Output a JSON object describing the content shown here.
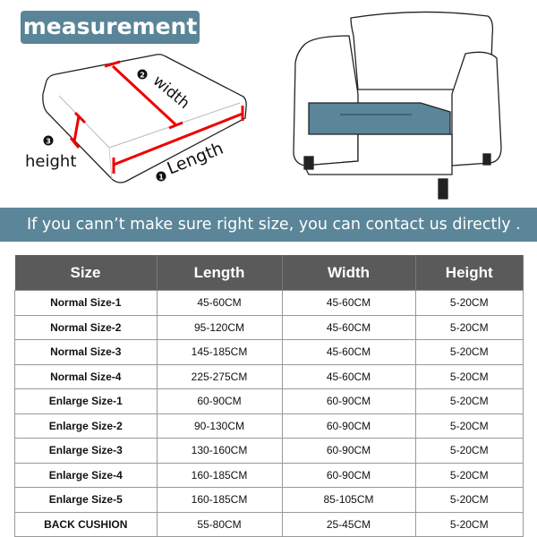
{
  "header": {
    "tag": "measurement"
  },
  "diagram": {
    "length_label": "Length",
    "width_label": "width",
    "height_label": "height",
    "length_num": "1",
    "width_num": "2",
    "height_num": "3",
    "seat_color": "#5b8699"
  },
  "banner": {
    "text": "If you cann’t make sure right size,  you can contact us directly ."
  },
  "table": {
    "headers": [
      "Size",
      "Length",
      "Width",
      "Height"
    ],
    "rows": [
      [
        "Normal Size-1",
        "45-60CM",
        "45-60CM",
        "5-20CM"
      ],
      [
        "Normal Size-2",
        "95-120CM",
        "45-60CM",
        "5-20CM"
      ],
      [
        "Normal Size-3",
        "145-185CM",
        "45-60CM",
        "5-20CM"
      ],
      [
        "Normal Size-4",
        "225-275CM",
        "45-60CM",
        "5-20CM"
      ],
      [
        "Enlarge Size-1",
        "60-90CM",
        "60-90CM",
        "5-20CM"
      ],
      [
        "Enlarge Size-2",
        "90-130CM",
        "60-90CM",
        "5-20CM"
      ],
      [
        "Enlarge Size-3",
        "130-160CM",
        "60-90CM",
        "5-20CM"
      ],
      [
        "Enlarge Size-4",
        "160-185CM",
        "60-90CM",
        "5-20CM"
      ],
      [
        "Enlarge Size-5",
        "160-185CM",
        "85-105CM",
        "5-20CM"
      ],
      [
        "BACK CUSHION",
        "55-80CM",
        "25-45CM",
        "5-20CM"
      ]
    ]
  }
}
